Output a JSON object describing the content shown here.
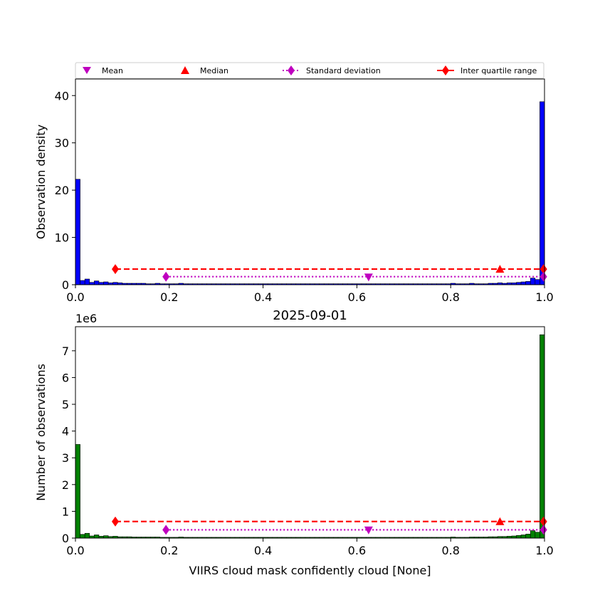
{
  "chart_data": [
    {
      "type": "bar",
      "title": "",
      "xlabel": "",
      "ylabel": "Observation density",
      "xlim": [
        0,
        1
      ],
      "ylim": [
        0,
        43.5
      ],
      "x_ticks": [
        0,
        0.2,
        0.4,
        0.6,
        0.8,
        1.0
      ],
      "x_tick_labels": [
        "0.0",
        "0.2",
        "0.4",
        "0.6",
        "0.8",
        "1.0"
      ],
      "y_ticks": [
        0,
        10,
        20,
        30,
        40
      ],
      "y_tick_labels": [
        "0",
        "10",
        "20",
        "30",
        "40"
      ],
      "bar_color": "#0000ff",
      "bin_width": 0.01,
      "values": [
        22.3,
        0.9,
        1.2,
        0.5,
        0.8,
        0.5,
        0.6,
        0.4,
        0.5,
        0.4,
        0.3,
        0.3,
        0.3,
        0.3,
        0.3,
        0.2,
        0.2,
        0.3,
        0.2,
        0.2,
        0.2,
        0.2,
        0.3,
        0.2,
        0.2,
        0.2,
        0.2,
        0.2,
        0.2,
        0.2,
        0.2,
        0.2,
        0.2,
        0.2,
        0.2,
        0.2,
        0.2,
        0.2,
        0.2,
        0.2,
        0.2,
        0.2,
        0.2,
        0.2,
        0.2,
        0.2,
        0.2,
        0.2,
        0.2,
        0.2,
        0.2,
        0.2,
        0.2,
        0.2,
        0.2,
        0.2,
        0.2,
        0.2,
        0.2,
        0.2,
        0.2,
        0.2,
        0.2,
        0.2,
        0.2,
        0.2,
        0.2,
        0.2,
        0.2,
        0.2,
        0.2,
        0.2,
        0.2,
        0.2,
        0.2,
        0.2,
        0.2,
        0.2,
        0.2,
        0.2,
        0.3,
        0.2,
        0.2,
        0.2,
        0.3,
        0.2,
        0.2,
        0.2,
        0.3,
        0.3,
        0.4,
        0.3,
        0.4,
        0.4,
        0.5,
        0.6,
        0.7,
        1.4,
        1.1,
        38.7
      ],
      "mean": {
        "x": 0.625,
        "y": 1.6
      },
      "std_line": {
        "x": [
          0.193,
          0.998
        ],
        "y": 1.7
      },
      "median": {
        "x": 0.905,
        "y": 3.3
      },
      "iqr": {
        "x": [
          0.085,
          0.998
        ],
        "y": 3.3
      }
    },
    {
      "type": "bar",
      "title": "2025-09-01",
      "xlabel": "VIIRS cloud mask confidently cloud [None]",
      "ylabel": "Number of observations",
      "offset_label": "1e6",
      "xlim": [
        0,
        1
      ],
      "ylim": [
        0,
        7.9
      ],
      "x_ticks": [
        0,
        0.2,
        0.4,
        0.6,
        0.8,
        1.0
      ],
      "x_tick_labels": [
        "0.0",
        "0.2",
        "0.4",
        "0.6",
        "0.8",
        "1.0"
      ],
      "y_ticks": [
        0,
        1,
        2,
        3,
        4,
        5,
        6,
        7
      ],
      "y_tick_labels": [
        "0",
        "1",
        "2",
        "3",
        "4",
        "5",
        "6",
        "7"
      ],
      "bar_color": "#008000",
      "bin_width": 0.01,
      "values": [
        3.5,
        0.14,
        0.18,
        0.08,
        0.12,
        0.07,
        0.09,
        0.06,
        0.07,
        0.05,
        0.05,
        0.05,
        0.04,
        0.04,
        0.04,
        0.04,
        0.04,
        0.04,
        0.03,
        0.03,
        0.03,
        0.03,
        0.04,
        0.03,
        0.03,
        0.03,
        0.03,
        0.03,
        0.03,
        0.03,
        0.03,
        0.03,
        0.03,
        0.03,
        0.03,
        0.03,
        0.03,
        0.03,
        0.03,
        0.03,
        0.03,
        0.03,
        0.03,
        0.03,
        0.03,
        0.03,
        0.03,
        0.03,
        0.03,
        0.03,
        0.03,
        0.03,
        0.03,
        0.03,
        0.03,
        0.03,
        0.03,
        0.03,
        0.03,
        0.03,
        0.03,
        0.03,
        0.03,
        0.03,
        0.03,
        0.03,
        0.03,
        0.03,
        0.03,
        0.03,
        0.03,
        0.03,
        0.03,
        0.03,
        0.03,
        0.03,
        0.03,
        0.03,
        0.03,
        0.03,
        0.04,
        0.03,
        0.03,
        0.03,
        0.04,
        0.04,
        0.04,
        0.04,
        0.05,
        0.05,
        0.06,
        0.06,
        0.07,
        0.08,
        0.1,
        0.12,
        0.15,
        0.28,
        0.22,
        7.6
      ],
      "mean": {
        "x": 0.625,
        "y": 0.3
      },
      "std_line": {
        "x": [
          0.193,
          0.998
        ],
        "y": 0.31
      },
      "median": {
        "x": 0.905,
        "y": 0.62
      },
      "iqr": {
        "x": [
          0.085,
          0.998
        ],
        "y": 0.62
      }
    }
  ],
  "legend": {
    "entries": [
      {
        "label": "Mean",
        "marker": "triangle-down",
        "color": "#bf00bf"
      },
      {
        "label": "Median",
        "marker": "triangle-up",
        "color": "#ff0000"
      },
      {
        "label": "Standard deviation",
        "marker": "diamond-dotted",
        "color": "#bf00bf"
      },
      {
        "label": "Inter quartile range",
        "marker": "diamond-dashed",
        "color": "#ff0000"
      }
    ]
  },
  "colors": {
    "mean": "#bf00bf",
    "median": "#ff0000",
    "std": "#bf00bf",
    "iqr": "#ff0000"
  }
}
